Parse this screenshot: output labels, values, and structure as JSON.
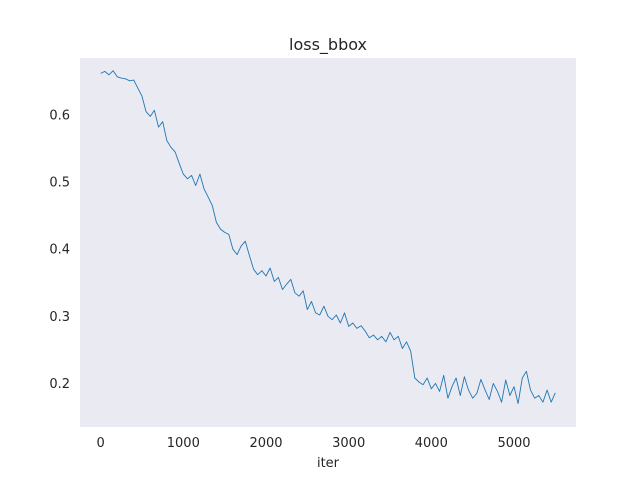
{
  "chart_data": {
    "type": "line",
    "title": "loss_bbox",
    "xlabel": "iter",
    "ylabel": "",
    "xlim": [
      -250,
      5750
    ],
    "ylim": [
      0.135,
      0.685
    ],
    "grid": false,
    "legend": "none",
    "xticks": [
      0,
      1000,
      2000,
      3000,
      4000,
      5000
    ],
    "yticks": [
      0.2,
      0.3,
      0.4,
      0.5,
      0.6
    ],
    "xtick_labels": [
      "0",
      "1000",
      "2000",
      "3000",
      "4000",
      "5000"
    ],
    "ytick_labels": [
      "0.2",
      "0.3",
      "0.4",
      "0.5",
      "0.6"
    ],
    "colors": {
      "plot_bg": "#eaeaf2",
      "line": "#1f77b4",
      "text": "#262626"
    },
    "series": [
      {
        "x": [
          0,
          50,
          100,
          150,
          200,
          250,
          300,
          350,
          400,
          450,
          500,
          550,
          600,
          650,
          700,
          750,
          800,
          850,
          900,
          950,
          1000,
          1050,
          1100,
          1150,
          1200,
          1250,
          1300,
          1350,
          1400,
          1450,
          1500,
          1550,
          1600,
          1650,
          1700,
          1750,
          1800,
          1850,
          1900,
          1950,
          2000,
          2050,
          2100,
          2150,
          2200,
          2250,
          2300,
          2350,
          2400,
          2450,
          2500,
          2550,
          2600,
          2650,
          2700,
          2750,
          2800,
          2850,
          2900,
          2950,
          3000,
          3050,
          3100,
          3150,
          3200,
          3250,
          3300,
          3350,
          3400,
          3450,
          3500,
          3550,
          3600,
          3650,
          3700,
          3750,
          3800,
          3850,
          3900,
          3950,
          4000,
          4050,
          4100,
          4150,
          4200,
          4250,
          4300,
          4350,
          4400,
          4450,
          4500,
          4550,
          4600,
          4650,
          4700,
          4750,
          4800,
          4850,
          4900,
          4950,
          5000,
          5050,
          5100,
          5150,
          5200,
          5250,
          5300,
          5350,
          5400,
          5450,
          5500
        ],
        "y": [
          0.662,
          0.665,
          0.66,
          0.666,
          0.657,
          0.655,
          0.654,
          0.651,
          0.652,
          0.64,
          0.628,
          0.605,
          0.598,
          0.607,
          0.582,
          0.59,
          0.562,
          0.552,
          0.545,
          0.528,
          0.512,
          0.505,
          0.51,
          0.495,
          0.512,
          0.49,
          0.478,
          0.465,
          0.44,
          0.43,
          0.425,
          0.422,
          0.4,
          0.392,
          0.405,
          0.412,
          0.39,
          0.37,
          0.362,
          0.368,
          0.36,
          0.372,
          0.352,
          0.358,
          0.34,
          0.348,
          0.355,
          0.335,
          0.33,
          0.338,
          0.31,
          0.322,
          0.305,
          0.302,
          0.315,
          0.3,
          0.295,
          0.302,
          0.29,
          0.305,
          0.285,
          0.29,
          0.282,
          0.286,
          0.278,
          0.268,
          0.272,
          0.265,
          0.27,
          0.262,
          0.276,
          0.265,
          0.27,
          0.252,
          0.262,
          0.248,
          0.208,
          0.202,
          0.198,
          0.208,
          0.192,
          0.2,
          0.188,
          0.212,
          0.178,
          0.195,
          0.208,
          0.182,
          0.21,
          0.19,
          0.178,
          0.185,
          0.206,
          0.19,
          0.176,
          0.2,
          0.188,
          0.172,
          0.205,
          0.182,
          0.195,
          0.17,
          0.208,
          0.218,
          0.19,
          0.178,
          0.182,
          0.172,
          0.19,
          0.172,
          0.186
        ]
      }
    ]
  }
}
